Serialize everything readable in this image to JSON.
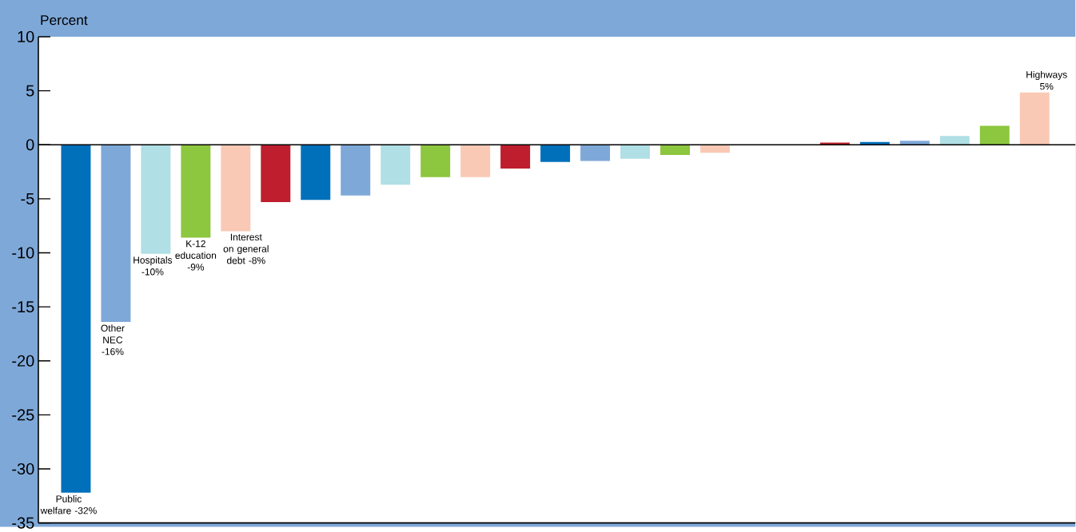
{
  "chart_data": {
    "type": "bar",
    "ylabel": "Percent",
    "categories": [
      null,
      null,
      null,
      null,
      null,
      null,
      null,
      null,
      null,
      null,
      null,
      null,
      null,
      null,
      null,
      null,
      null,
      null,
      null,
      null,
      null,
      null,
      null,
      null,
      null
    ],
    "values": [
      -32.2,
      -16.4,
      -10.1,
      -8.6,
      -8.0,
      -5.3,
      -5.1,
      -4.7,
      -3.7,
      -3.0,
      -3.0,
      -2.2,
      -1.6,
      -1.5,
      -1.3,
      -0.95,
      -0.75,
      null,
      null,
      0.2,
      0.26,
      0.36,
      0.82,
      1.76,
      4.85
    ],
    "colors": [
      "#0070bb",
      "#7ea8d8",
      "#b0dfe5",
      "#8dc63f",
      "#f9c9b5",
      "#be1e2d",
      "#0070bb",
      "#7ea8d8",
      "#b0dfe5",
      "#8dc63f",
      "#f9c9b5",
      "#be1e2d",
      "#0070bb",
      "#7ea8d8",
      "#b0dfe5",
      "#8dc63f",
      "#f9c9b5",
      "#be1e2d",
      "#0070bb",
      "#be1e2d",
      "#0070bb",
      "#7ea8d8",
      "#b0dfe5",
      "#8dc63f",
      "#f9c9b5"
    ],
    "value_labels": [
      "Public welfare -32%",
      "Other NEC -16%",
      "Hospitals -10%",
      "K-12 education -9%",
      "Interest on general debt -8%",
      null,
      null,
      null,
      null,
      null,
      null,
      null,
      null,
      null,
      null,
      null,
      null,
      null,
      null,
      null,
      null,
      null,
      null,
      null,
      "Highways 5%"
    ],
    "ylim": [
      -35,
      10
    ],
    "yticks": [
      -35,
      -30,
      -25,
      -20,
      -15,
      -10,
      -5,
      0,
      5,
      10
    ]
  }
}
